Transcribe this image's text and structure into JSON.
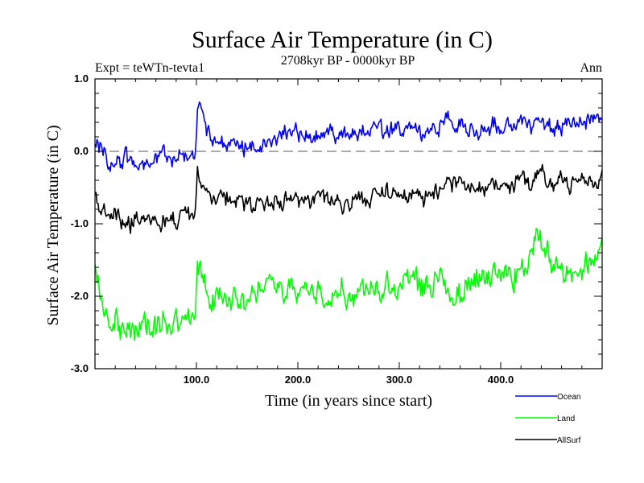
{
  "chart_data": {
    "type": "line",
    "title": "Surface Air Temperature (in C)",
    "subtitle": "2708kyr BP - 0000kyr BP",
    "left_label": "Expt = teWTn-tevta1",
    "right_label": "Ann",
    "xlabel": "Time (in years since start)",
    "ylabel": "Surface Air Temperature (in C)",
    "xlim": [
      0,
      500
    ],
    "ylim": [
      -3.0,
      1.0
    ],
    "x_ticks": [
      100,
      200,
      300,
      400
    ],
    "x_tick_labels": [
      "100.0",
      "200.0",
      "300.0",
      "400.0"
    ],
    "y_ticks": [
      -3.0,
      -2.0,
      -1.0,
      0.0,
      1.0
    ],
    "y_tick_labels": [
      "-3.0",
      "-2.0",
      "-1.0",
      "0.0",
      "1.0"
    ],
    "reference_line": 0.0,
    "series": [
      {
        "name": "Ocean",
        "color": "#0000ff",
        "anchors": [
          [
            0,
            0.15
          ],
          [
            10,
            -0.05
          ],
          [
            20,
            -0.15
          ],
          [
            30,
            -0.1
          ],
          [
            40,
            -0.2
          ],
          [
            50,
            -0.15
          ],
          [
            60,
            -0.1
          ],
          [
            70,
            -0.08
          ],
          [
            80,
            -0.05
          ],
          [
            90,
            -0.05
          ],
          [
            99,
            -0.05
          ],
          [
            101,
            0.5
          ],
          [
            104,
            0.6
          ],
          [
            110,
            0.25
          ],
          [
            120,
            0.1
          ],
          [
            150,
            0.1
          ],
          [
            175,
            0.15
          ],
          [
            200,
            0.25
          ],
          [
            225,
            0.28
          ],
          [
            250,
            0.2
          ],
          [
            275,
            0.3
          ],
          [
            300,
            0.3
          ],
          [
            325,
            0.25
          ],
          [
            350,
            0.4
          ],
          [
            375,
            0.3
          ],
          [
            400,
            0.35
          ],
          [
            425,
            0.4
          ],
          [
            450,
            0.35
          ],
          [
            475,
            0.35
          ],
          [
            500,
            0.45
          ]
        ],
        "noise": 0.12
      },
      {
        "name": "Land",
        "color": "#00ff00",
        "anchors": [
          [
            0,
            -1.55
          ],
          [
            5,
            -2.0
          ],
          [
            15,
            -2.35
          ],
          [
            30,
            -2.4
          ],
          [
            50,
            -2.45
          ],
          [
            70,
            -2.35
          ],
          [
            90,
            -2.3
          ],
          [
            99,
            -2.3
          ],
          [
            101,
            -1.75
          ],
          [
            105,
            -1.7
          ],
          [
            115,
            -2.05
          ],
          [
            150,
            -2.0
          ],
          [
            175,
            -1.95
          ],
          [
            200,
            -1.9
          ],
          [
            225,
            -1.95
          ],
          [
            250,
            -1.95
          ],
          [
            275,
            -1.85
          ],
          [
            300,
            -1.85
          ],
          [
            325,
            -1.85
          ],
          [
            340,
            -1.6
          ],
          [
            350,
            -2.05
          ],
          [
            375,
            -1.75
          ],
          [
            400,
            -1.75
          ],
          [
            425,
            -1.6
          ],
          [
            435,
            -1.2
          ],
          [
            450,
            -1.6
          ],
          [
            475,
            -1.7
          ],
          [
            500,
            -1.4
          ]
        ],
        "noise": 0.18
      },
      {
        "name": "AllSurf",
        "color": "#000000",
        "anchors": [
          [
            0,
            -0.6
          ],
          [
            10,
            -0.85
          ],
          [
            25,
            -0.95
          ],
          [
            50,
            -1.0
          ],
          [
            75,
            -0.95
          ],
          [
            99,
            -0.9
          ],
          [
            101,
            -0.35
          ],
          [
            105,
            -0.35
          ],
          [
            115,
            -0.6
          ],
          [
            150,
            -0.7
          ],
          [
            175,
            -0.72
          ],
          [
            200,
            -0.68
          ],
          [
            225,
            -0.65
          ],
          [
            250,
            -0.7
          ],
          [
            275,
            -0.6
          ],
          [
            300,
            -0.6
          ],
          [
            325,
            -0.62
          ],
          [
            350,
            -0.45
          ],
          [
            375,
            -0.5
          ],
          [
            400,
            -0.5
          ],
          [
            425,
            -0.45
          ],
          [
            440,
            -0.3
          ],
          [
            450,
            -0.45
          ],
          [
            475,
            -0.45
          ],
          [
            500,
            -0.35
          ]
        ],
        "noise": 0.12
      }
    ],
    "legend": {
      "placement": "bottom-right",
      "entries": [
        "Ocean",
        "Land",
        "AllSurf"
      ]
    }
  }
}
